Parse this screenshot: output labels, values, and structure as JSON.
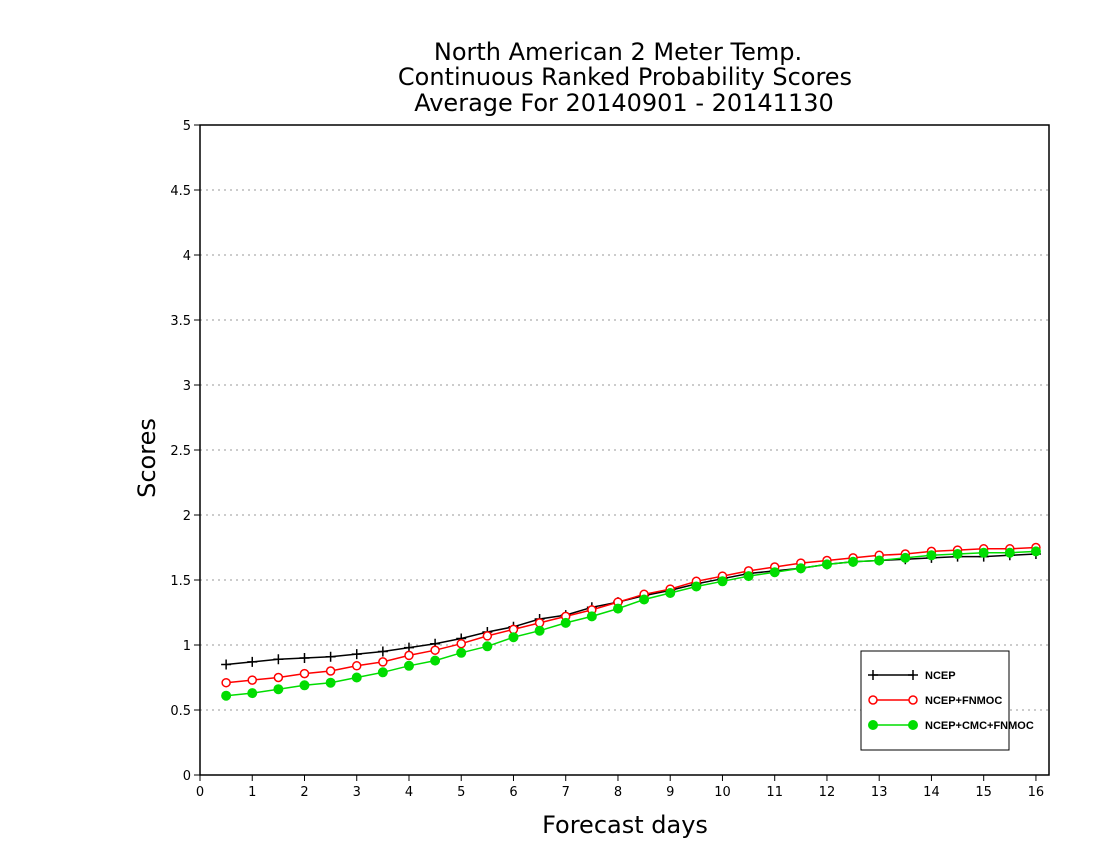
{
  "chart_data": {
    "type": "line",
    "title_lines": [
      "North American 2 Meter Temp.",
      "Continuous Ranked Probability Scores",
      "Average For 20140901 - 20141130"
    ],
    "xlabel": "Forecast days",
    "ylabel": "Scores",
    "xlim": [
      0,
      16.25
    ],
    "ylim": [
      0,
      5
    ],
    "xticks": [
      "0",
      "1",
      "2",
      "3",
      "4",
      "5",
      "6",
      "7",
      "8",
      "9",
      "10",
      "11",
      "12",
      "13",
      "14",
      "15",
      "16"
    ],
    "yticks": [
      "0",
      "0.5",
      "1",
      "1.5",
      "2",
      "2.5",
      "3",
      "3.5",
      "4",
      "4.5",
      "5"
    ],
    "grid": true,
    "legend_position": "bottom-right",
    "x": [
      0.5,
      1,
      1.5,
      2,
      2.5,
      3,
      3.5,
      4,
      4.5,
      5,
      5.5,
      6,
      6.5,
      7,
      7.5,
      8,
      8.5,
      9,
      9.5,
      10,
      10.5,
      11,
      11.5,
      12,
      12.5,
      13,
      13.5,
      14,
      14.5,
      15,
      15.5,
      16
    ],
    "series": [
      {
        "name": "NCEP",
        "color": "#000000",
        "marker": "plus",
        "values": [
          0.85,
          0.87,
          0.89,
          0.9,
          0.91,
          0.93,
          0.95,
          0.98,
          1.01,
          1.05,
          1.1,
          1.14,
          1.2,
          1.23,
          1.29,
          1.33,
          1.38,
          1.42,
          1.47,
          1.51,
          1.55,
          1.57,
          1.59,
          1.62,
          1.64,
          1.65,
          1.66,
          1.67,
          1.68,
          1.68,
          1.69,
          1.7
        ]
      },
      {
        "name": "NCEP+FNMOC",
        "color": "#ff0000",
        "marker": "open-circle",
        "values": [
          0.71,
          0.73,
          0.75,
          0.78,
          0.8,
          0.84,
          0.87,
          0.92,
          0.96,
          1.01,
          1.07,
          1.12,
          1.17,
          1.22,
          1.27,
          1.33,
          1.39,
          1.43,
          1.49,
          1.53,
          1.57,
          1.6,
          1.63,
          1.65,
          1.67,
          1.69,
          1.7,
          1.72,
          1.73,
          1.74,
          1.74,
          1.75
        ]
      },
      {
        "name": "NCEP+CMC+FNMOC",
        "color": "#00dd00",
        "marker": "filled-circle",
        "values": [
          0.61,
          0.63,
          0.66,
          0.69,
          0.71,
          0.75,
          0.79,
          0.84,
          0.88,
          0.94,
          0.99,
          1.06,
          1.11,
          1.17,
          1.22,
          1.28,
          1.35,
          1.4,
          1.45,
          1.49,
          1.53,
          1.56,
          1.59,
          1.62,
          1.64,
          1.65,
          1.67,
          1.69,
          1.7,
          1.71,
          1.71,
          1.72
        ]
      }
    ]
  }
}
